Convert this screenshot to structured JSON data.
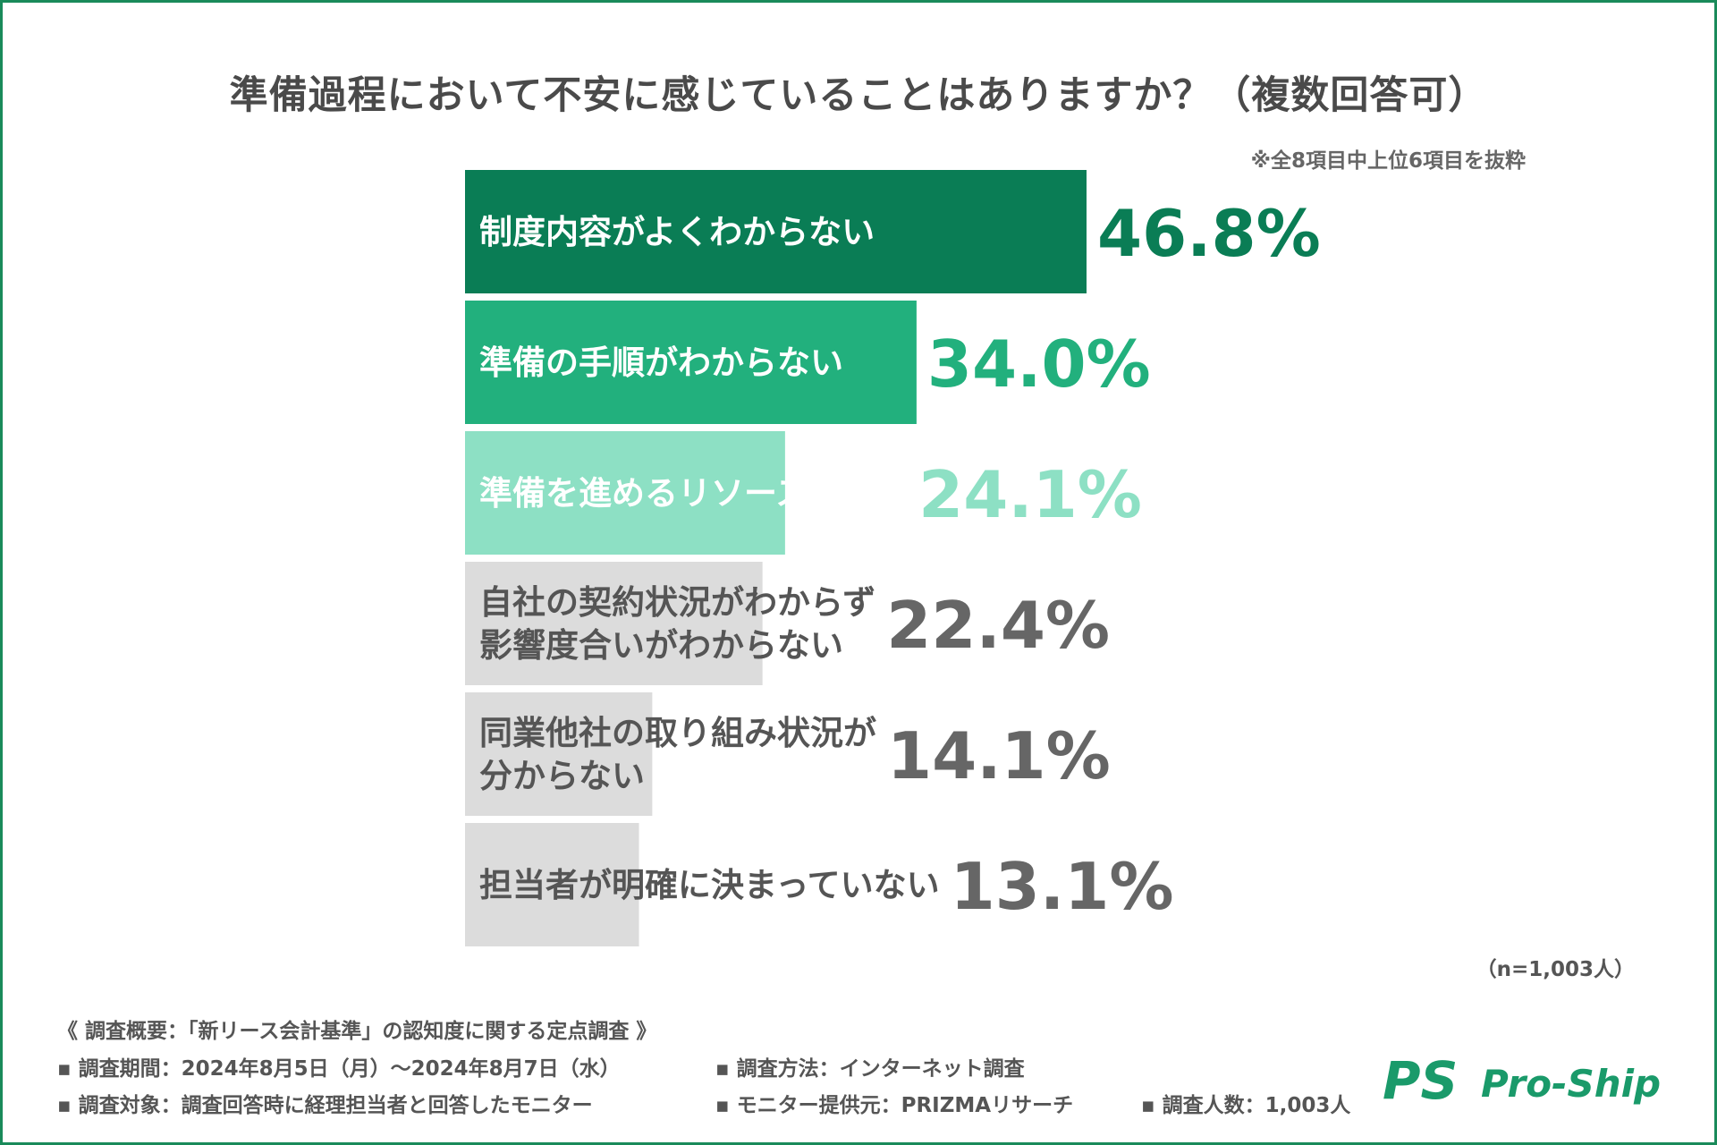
{
  "title": "準備過程において不安に感じていることはありますか？（複数回答可）",
  "note": "※全8項目中上位6項目を抜粋",
  "sample_size": "（n=1,003人）",
  "colors": {
    "frame": "#1a8a5a",
    "bar1": "#0a7d55",
    "bar2": "#22b07d",
    "bar3": "#8de0c4",
    "bar_gray": "#dcdcdc",
    "gray_text": "#666666"
  },
  "chart_data": {
    "type": "bar",
    "orientation": "horizontal",
    "title": "準備過程において不安に感じていることはありますか？（複数回答可）",
    "categories": [
      "制度内容がよくわからない",
      "準備の手順がわからない",
      "準備を進めるリソースが無い",
      "自社の契約状況がわからず影響度合いがわからない",
      "同業他社の取り組み状況が分からない",
      "担当者が明確に決まっていない"
    ],
    "label_lines": [
      [
        "制度内容がよくわからない"
      ],
      [
        "準備の手順がわからない"
      ],
      [
        "準備を進めるリソースが無い"
      ],
      [
        "自社の契約状況がわからず",
        "影響度合いがわからない"
      ],
      [
        "同業他社の取り組み状況が",
        "分からない"
      ],
      [
        "担当者が明確に決まっていない"
      ]
    ],
    "values": [
      46.8,
      34.0,
      24.1,
      22.4,
      14.1,
      13.1
    ],
    "value_labels": [
      "46.8%",
      "34.0%",
      "24.1%",
      "22.4%",
      "14.1%",
      "13.1%"
    ],
    "unit": "%",
    "xlim": [
      0,
      50
    ]
  },
  "footer": {
    "survey_heading": "《 調査概要：「新リース会計基準」の認知度に関する定点調査 》",
    "period": "▪ 調査期間：2024年8月5日（月）～2024年8月7日（水）",
    "method": "▪ 調査方法：インターネット調査",
    "target": "▪ 調査対象：調査回答時に経理担当者と回答したモニター",
    "provider": "▪ モニター提供元：PRIZMAリサーチ",
    "count": "▪ 調査人数：1,003人"
  },
  "logo": {
    "mark": "PS",
    "text": "Pro-Ship"
  }
}
